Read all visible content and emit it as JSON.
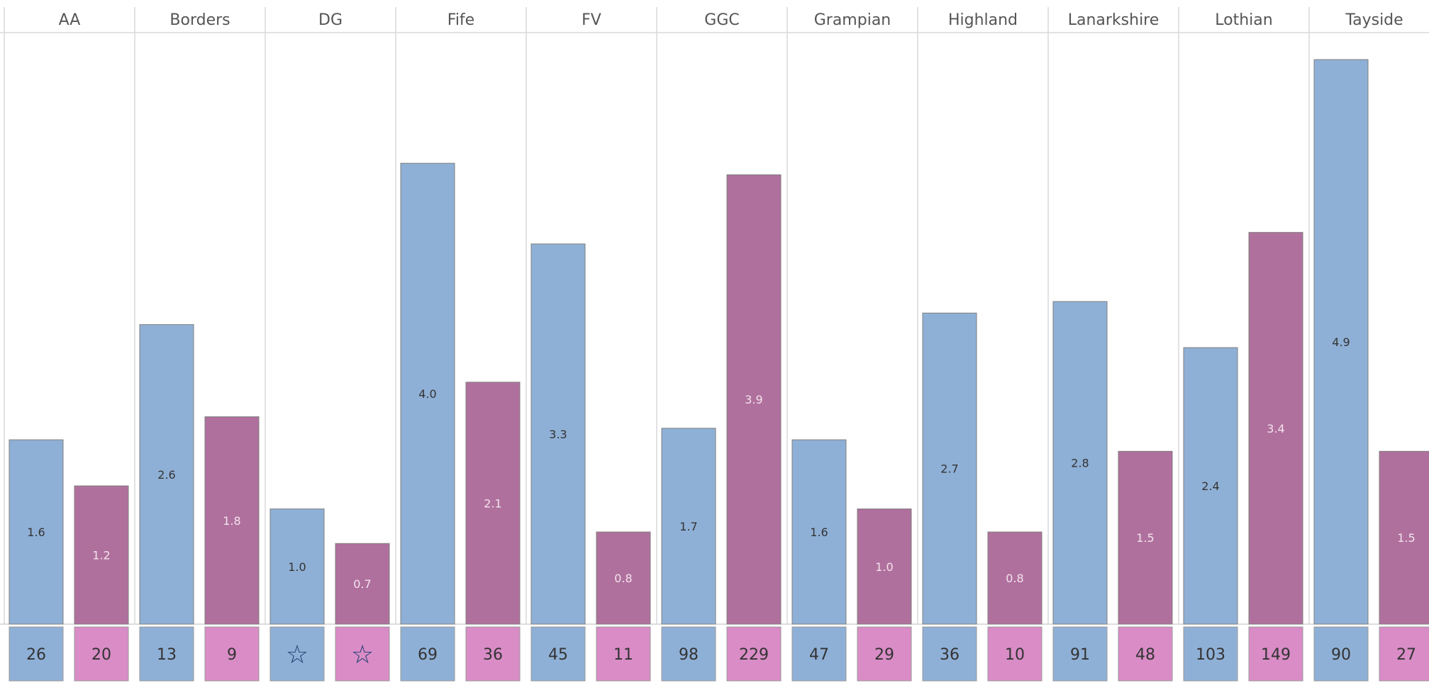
{
  "chart_data": {
    "type": "bar",
    "categories": [
      "AA",
      "Borders",
      "DG",
      "Fife",
      "FV",
      "GGC",
      "Grampian",
      "Highland",
      "Lanarkshire",
      "Lothian",
      "Tayside"
    ],
    "series": [
      {
        "values": [
          1.6,
          2.6,
          1.0,
          4.0,
          3.3,
          1.7,
          1.6,
          2.7,
          2.8,
          2.4,
          4.9
        ],
        "counts": [
          "26",
          "13",
          "☆",
          "69",
          "45",
          "98",
          "47",
          "36",
          "91",
          "103",
          "90"
        ],
        "bar_color": "#8fb0d6",
        "count_color": "#8fb0d6",
        "label_color": "#333333"
      },
      {
        "values": [
          1.2,
          1.8,
          0.7,
          2.1,
          0.8,
          3.9,
          1.0,
          0.8,
          1.5,
          3.4,
          1.5
        ],
        "counts": [
          "20",
          "9",
          "☆",
          "36",
          "11",
          "229",
          "29",
          "10",
          "48",
          "149",
          "27"
        ],
        "bar_color": "#b0709d",
        "count_color": "#d98cc6",
        "label_color": "#f3e3ee"
      }
    ],
    "bar_heights_note": null,
    "divider_color": "#d9d9d9",
    "star_color": "#1f3f73"
  }
}
